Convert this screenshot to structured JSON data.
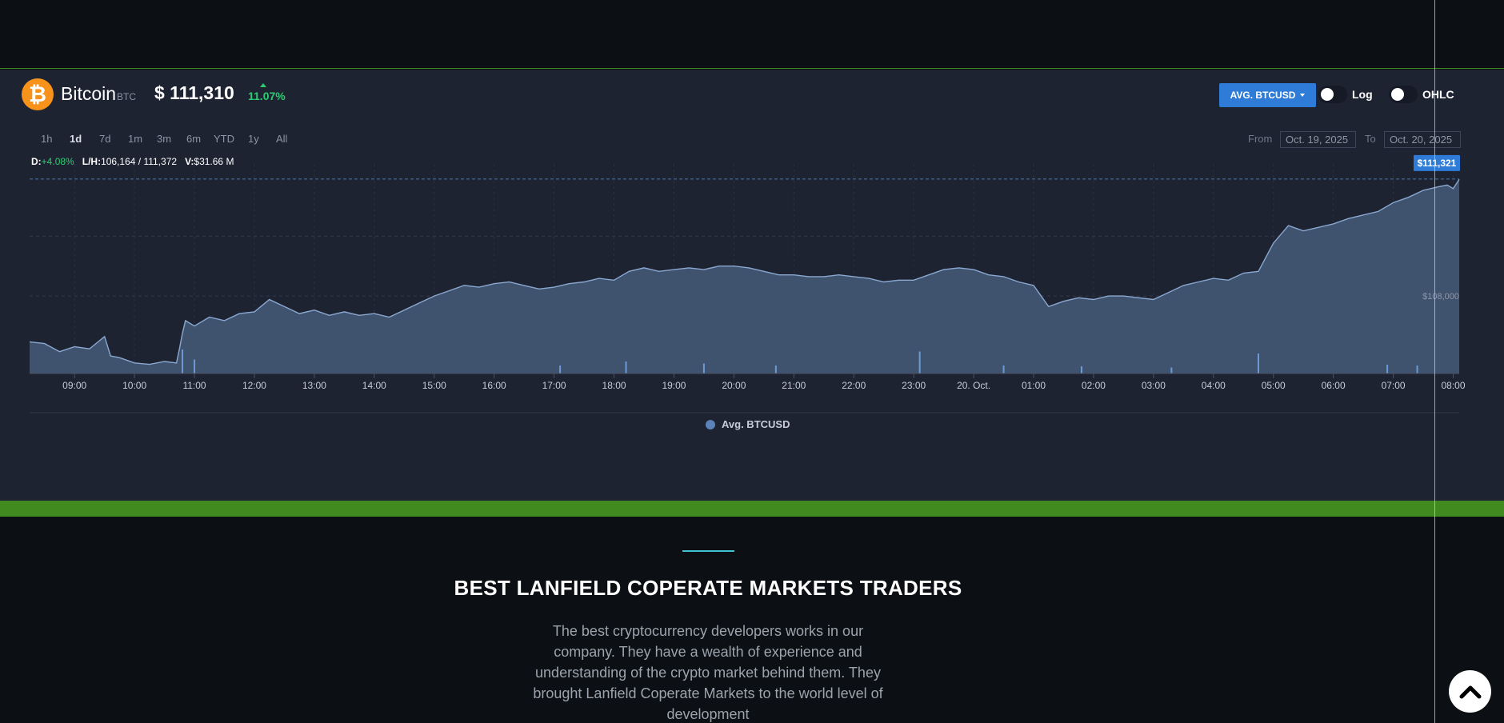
{
  "coin": {
    "logo_glyph": "₿",
    "name": "Bitcoin",
    "symbol": "BTC",
    "price": "$ 111,310",
    "change": "11.07%"
  },
  "controls": {
    "series_label": "AVG. BTCUSD",
    "log_label": "Log",
    "ohlc_label": "OHLC"
  },
  "ranges": [
    {
      "label": "1h",
      "active": false
    },
    {
      "label": "1d",
      "active": true
    },
    {
      "label": "7d",
      "active": false
    },
    {
      "label": "1m",
      "active": false
    },
    {
      "label": "3m",
      "active": false
    },
    {
      "label": "6m",
      "active": false
    },
    {
      "label": "YTD",
      "active": false
    },
    {
      "label": "1y",
      "active": false
    },
    {
      "label": "All",
      "active": false
    }
  ],
  "dates": {
    "from_label": "From",
    "from_value": "Oct. 19, 2025",
    "to_label": "To",
    "to_value": "Oct. 20, 2025"
  },
  "stats": {
    "d_label": "D:",
    "d_value": "+4.08%",
    "lh_label": "L/H:",
    "lh_value": "106,164 / 111,372",
    "v_label": "V:",
    "v_value": "$31.66 M"
  },
  "chart_data": {
    "type": "area",
    "series": [
      {
        "name": "Avg. BTCUSD"
      }
    ],
    "x_ticks": [
      "09:00",
      "10:00",
      "11:00",
      "12:00",
      "13:00",
      "14:00",
      "15:00",
      "16:00",
      "17:00",
      "18:00",
      "19:00",
      "20:00",
      "21:00",
      "22:00",
      "23:00",
      "20. Oct.",
      "01:00",
      "02:00",
      "03:00",
      "04:00",
      "05:00",
      "06:00",
      "07:00",
      "08:00"
    ],
    "x_start_hour": 8.25,
    "x_end_hour": 32.1,
    "y_range": [
      105800,
      111750
    ],
    "y_tick_label": "$108,000",
    "y_tick_value": 108000,
    "current_label": "$111,321",
    "current_value": 111321,
    "points": [
      [
        8.25,
        106700
      ],
      [
        8.5,
        106650
      ],
      [
        8.75,
        106420
      ],
      [
        9.0,
        106560
      ],
      [
        9.25,
        106500
      ],
      [
        9.5,
        106850
      ],
      [
        9.6,
        106300
      ],
      [
        9.75,
        106250
      ],
      [
        10.0,
        106100
      ],
      [
        10.25,
        106060
      ],
      [
        10.5,
        106140
      ],
      [
        10.7,
        106100
      ],
      [
        10.75,
        106500
      ],
      [
        10.8,
        106950
      ],
      [
        10.85,
        107300
      ],
      [
        11.0,
        107150
      ],
      [
        11.25,
        107400
      ],
      [
        11.5,
        107300
      ],
      [
        11.75,
        107500
      ],
      [
        12.0,
        107550
      ],
      [
        12.25,
        107900
      ],
      [
        12.5,
        107700
      ],
      [
        12.75,
        107500
      ],
      [
        13.0,
        107600
      ],
      [
        13.25,
        107450
      ],
      [
        13.5,
        107550
      ],
      [
        13.75,
        107450
      ],
      [
        14.0,
        107500
      ],
      [
        14.25,
        107400
      ],
      [
        14.5,
        107600
      ],
      [
        14.75,
        107800
      ],
      [
        15.0,
        108000
      ],
      [
        15.25,
        108150
      ],
      [
        15.5,
        108300
      ],
      [
        15.75,
        108250
      ],
      [
        16.0,
        108350
      ],
      [
        16.25,
        108400
      ],
      [
        16.5,
        108300
      ],
      [
        16.75,
        108200
      ],
      [
        17.0,
        108250
      ],
      [
        17.25,
        108350
      ],
      [
        17.5,
        108400
      ],
      [
        17.75,
        108500
      ],
      [
        18.0,
        108450
      ],
      [
        18.25,
        108700
      ],
      [
        18.5,
        108800
      ],
      [
        18.75,
        108700
      ],
      [
        19.0,
        108750
      ],
      [
        19.25,
        108800
      ],
      [
        19.5,
        108750
      ],
      [
        19.75,
        108850
      ],
      [
        20.0,
        108850
      ],
      [
        20.25,
        108800
      ],
      [
        20.5,
        108700
      ],
      [
        20.75,
        108600
      ],
      [
        21.0,
        108600
      ],
      [
        21.25,
        108550
      ],
      [
        21.5,
        108550
      ],
      [
        21.75,
        108600
      ],
      [
        22.0,
        108550
      ],
      [
        22.25,
        108500
      ],
      [
        22.5,
        108400
      ],
      [
        22.75,
        108450
      ],
      [
        23.0,
        108450
      ],
      [
        23.25,
        108600
      ],
      [
        23.5,
        108750
      ],
      [
        23.75,
        108800
      ],
      [
        24.0,
        108750
      ],
      [
        24.25,
        108600
      ],
      [
        24.5,
        108550
      ],
      [
        24.75,
        108400
      ],
      [
        25.0,
        108300
      ],
      [
        25.25,
        107700
      ],
      [
        25.5,
        107850
      ],
      [
        25.75,
        107950
      ],
      [
        26.0,
        107900
      ],
      [
        26.25,
        108000
      ],
      [
        26.5,
        108000
      ],
      [
        26.75,
        107950
      ],
      [
        27.0,
        107900
      ],
      [
        27.25,
        108100
      ],
      [
        27.5,
        108300
      ],
      [
        27.75,
        108400
      ],
      [
        28.0,
        108500
      ],
      [
        28.25,
        108450
      ],
      [
        28.5,
        108650
      ],
      [
        28.75,
        108700
      ],
      [
        29.0,
        109500
      ],
      [
        29.25,
        110000
      ],
      [
        29.5,
        109850
      ],
      [
        29.75,
        109950
      ],
      [
        30.0,
        110050
      ],
      [
        30.25,
        110200
      ],
      [
        30.5,
        110300
      ],
      [
        30.75,
        110400
      ],
      [
        31.0,
        110650
      ],
      [
        31.25,
        110800
      ],
      [
        31.5,
        111000
      ],
      [
        31.75,
        111100
      ],
      [
        31.9,
        111150
      ],
      [
        32.0,
        111050
      ],
      [
        32.1,
        111310
      ]
    ],
    "volume_spikes": [
      [
        10.8,
        0.6
      ],
      [
        11.0,
        0.35
      ],
      [
        23.1,
        0.55
      ],
      [
        24.5,
        0.2
      ],
      [
        28.75,
        0.5
      ],
      [
        19.5,
        0.25
      ],
      [
        18.2,
        0.3
      ],
      [
        17.1,
        0.2
      ],
      [
        20.7,
        0.2
      ],
      [
        25.8,
        0.18
      ],
      [
        27.3,
        0.15
      ],
      [
        30.9,
        0.22
      ],
      [
        31.4,
        0.2
      ]
    ]
  },
  "legend": {
    "label": "Avg. BTCUSD"
  },
  "section": {
    "title": "BEST LANFIELD COPERATE MARKETS TRADERS",
    "body": "The best cryptocurrency developers works in our company. They have a wealth of experience and understanding of the crypto market behind them. They brought Lanfield Coperate Markets to the world level of development"
  },
  "colors": {
    "accent_blue": "#2e7cd8",
    "positive": "#2ecc71",
    "brand_green": "#418a1f",
    "btc_orange": "#f7931a"
  }
}
